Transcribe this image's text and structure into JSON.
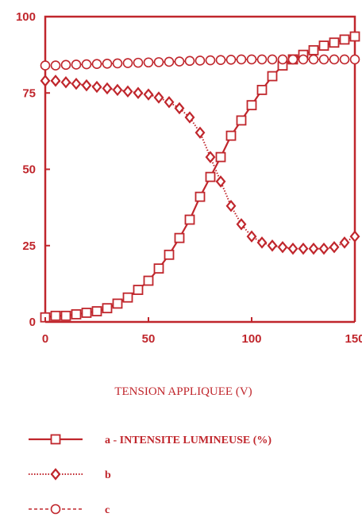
{
  "chart_data": {
    "type": "line",
    "title": "",
    "xlabel": "TENSION APPLIQUEE (V)",
    "ylabel": "",
    "xlim": [
      0,
      150
    ],
    "ylim": [
      0,
      100
    ],
    "xticks": [
      0,
      50,
      100,
      150
    ],
    "xtick_labels": [
      "0",
      "50",
      "100",
      "150"
    ],
    "yticks": [
      0,
      25,
      50,
      75,
      100
    ],
    "ytick_labels": [
      "0",
      "25",
      "50",
      "75",
      "100"
    ],
    "grid": false,
    "legend_position": "bottom",
    "color": "#c0262c",
    "x": [
      0,
      5,
      10,
      15,
      20,
      25,
      30,
      35,
      40,
      45,
      50,
      55,
      60,
      65,
      70,
      75,
      80,
      85,
      90,
      95,
      100,
      105,
      110,
      115,
      120,
      125,
      130,
      135,
      140,
      145,
      150
    ],
    "series": [
      {
        "name": "a - INTENSITE LUMINEUSE (%)",
        "marker": "square",
        "line": "solid",
        "values": [
          1.5,
          2,
          2,
          2.5,
          3,
          3.5,
          4.5,
          6,
          8,
          10.5,
          13.5,
          17.5,
          22,
          27.5,
          33.5,
          41,
          47.5,
          54,
          61,
          66,
          71,
          76,
          80.5,
          84,
          86,
          87.5,
          89,
          90.5,
          91.5,
          92.5,
          93.5
        ]
      },
      {
        "name": "b",
        "marker": "diamond",
        "line": "dotted",
        "values": [
          79,
          79,
          78.5,
          78,
          77.5,
          77,
          76.5,
          76,
          75.5,
          75,
          74.5,
          73.5,
          72,
          70,
          67,
          62,
          54,
          46,
          38,
          32,
          28,
          26,
          25,
          24.5,
          24,
          24,
          24,
          24,
          24.5,
          26,
          28
        ]
      },
      {
        "name": "c",
        "marker": "circle",
        "line": "dashed",
        "values": [
          84,
          84,
          84.2,
          84.3,
          84.4,
          84.5,
          84.6,
          84.7,
          84.8,
          84.9,
          85,
          85.1,
          85.2,
          85.3,
          85.5,
          85.6,
          85.7,
          85.8,
          85.9,
          86,
          86,
          86,
          86,
          86,
          86,
          86,
          86,
          86,
          86,
          86,
          86
        ]
      }
    ]
  }
}
